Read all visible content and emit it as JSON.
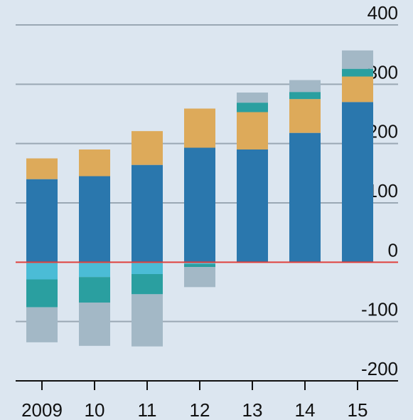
{
  "chart_data": {
    "type": "stacked_bar",
    "categories": [
      "2009",
      "10",
      "11",
      "12",
      "13",
      "14",
      "15"
    ],
    "series": [
      {
        "color": "#2a77ad",
        "values": [
          140,
          145,
          164,
          193,
          190,
          218,
          270
        ]
      },
      {
        "color": "#ddaa5a",
        "values": [
          35,
          45,
          57,
          66,
          63,
          57,
          43
        ]
      },
      {
        "color": "#4bbcd6",
        "values": [
          -29,
          -25,
          -20,
          -3,
          0,
          0,
          0
        ]
      },
      {
        "color": "#2a9fa0",
        "values": [
          -47,
          -43,
          -34,
          -5,
          16,
          12,
          13
        ]
      },
      {
        "color": "#a3b8c6",
        "values": [
          -59,
          -73,
          -88,
          -34,
          17,
          20,
          31
        ]
      }
    ],
    "ylim": [
      -200,
      400
    ],
    "yticks": [
      -200,
      -100,
      0,
      100,
      200,
      300,
      400
    ],
    "grid": true
  }
}
